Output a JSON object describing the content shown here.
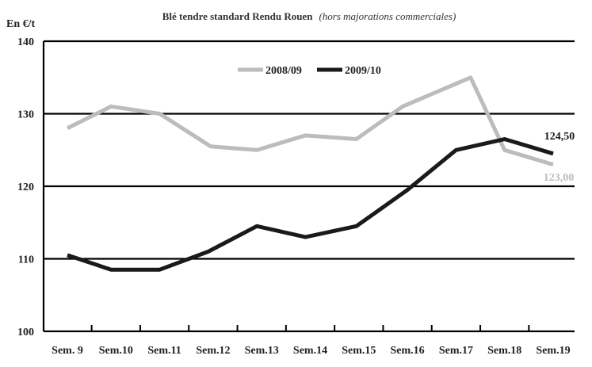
{
  "chart_data": {
    "type": "line",
    "title": "Blé tendre standard Rendu Rouen",
    "subtitle": "(hors majorations commerciales)",
    "ylabel": "En €/t",
    "ylim": [
      100,
      140
    ],
    "yticks": [
      100,
      110,
      120,
      130,
      140
    ],
    "categories": [
      "Sem. 9",
      "Sem.10",
      "Sem.11",
      "Sem.12",
      "Sem.13",
      "Sem.14",
      "Sem.15",
      "Sem.16",
      "Sem.17",
      "Sem.18",
      "Sem.19"
    ],
    "grid": true,
    "legend_position": "top",
    "series": [
      {
        "name": "2008/09",
        "color": "#bcbcbc",
        "x": [
          0,
          0.9,
          1.9,
          2.95,
          3.9,
          4.9,
          5.95,
          6.9,
          8.3,
          9.0,
          10.0
        ],
        "values": [
          128,
          131,
          130,
          125.5,
          125,
          127,
          126.5,
          131,
          135,
          125,
          123
        ],
        "end_label": "123,00"
      },
      {
        "name": "2009/10",
        "color": "#1a1a1a",
        "x": [
          0,
          0.9,
          1.9,
          2.9,
          3.9,
          4.9,
          5.95,
          7.0,
          8.0,
          9.0,
          10.0
        ],
        "values": [
          110.5,
          108.5,
          108.5,
          111,
          114.5,
          113,
          114.5,
          119.5,
          125,
          126.5,
          124.5
        ],
        "end_label": "124,50"
      }
    ]
  }
}
